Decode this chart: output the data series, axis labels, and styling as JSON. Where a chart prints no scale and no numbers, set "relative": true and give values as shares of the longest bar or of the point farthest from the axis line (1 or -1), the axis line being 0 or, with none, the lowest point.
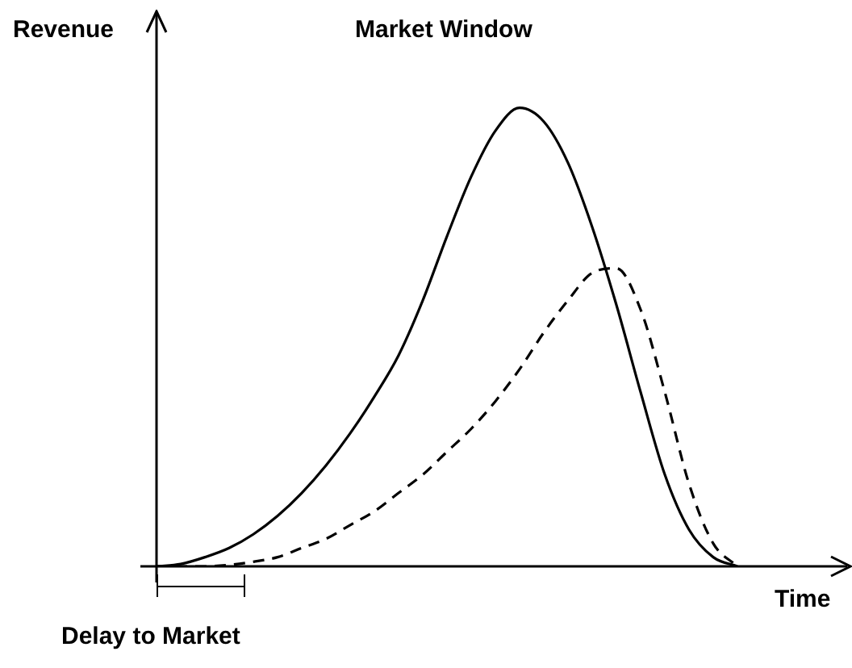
{
  "chart_data": {
    "type": "line",
    "title": "Market Window",
    "xlabel": "Time",
    "ylabel": "Revenue",
    "relative": true,
    "marker": "none",
    "annotations": [
      "Delay to Market"
    ],
    "categories": [
      null,
      null,
      null,
      null,
      null,
      null,
      null,
      null,
      null,
      null,
      null,
      null,
      null,
      null,
      null,
      null,
      null,
      null,
      null,
      null,
      null,
      null,
      null,
      null,
      null,
      null,
      null,
      null,
      null
    ],
    "series": [
      {
        "color": "#000000",
        "line_style": "solid",
        "values": [
          0,
          0.005,
          0.02,
          0.04,
          0.07,
          0.11,
          0.16,
          0.22,
          0.29,
          0.37,
          0.46,
          0.58,
          0.72,
          0.85,
          0.95,
          1,
          0.97,
          0.88,
          0.74,
          0.57,
          0.38,
          0.2,
          0.08,
          0.02,
          0,
          null,
          null,
          null,
          null
        ]
      },
      {
        "color": "#000000",
        "line_style": "dashed",
        "values": [
          0,
          0,
          0,
          0.003,
          0.01,
          0.02,
          0.04,
          0.06,
          0.09,
          0.12,
          0.16,
          0.2,
          0.25,
          0.3,
          0.36,
          0.43,
          0.51,
          0.58,
          0.64,
          0.65,
          0.56,
          0.38,
          0.18,
          0.05,
          0,
          null,
          null,
          null,
          null
        ]
      }
    ]
  }
}
